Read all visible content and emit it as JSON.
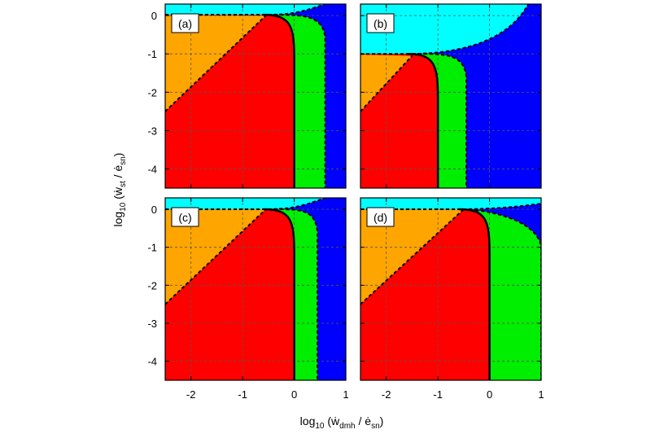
{
  "colors": {
    "red": "#ff0000",
    "orange": "#ffa500",
    "green": "#00ee00",
    "blue": "#0000ff",
    "cyan": "#00ffff",
    "grid": "#555555",
    "boundary": "#000000"
  },
  "axes": {
    "xlabel": {
      "pre": "log",
      "sub1": "10",
      "mid": " (ẇ",
      "sub2": "dmh",
      "mid2": " / ė",
      "sub3": "sn",
      "post": ")"
    },
    "ylabel": {
      "pre": "log",
      "sub1": "10",
      "mid": " (ẇ",
      "sub2": "st",
      "mid2": " / ė",
      "sub3": "sn",
      "post": ")"
    },
    "x_ticks": [
      "-2",
      "-1",
      "0",
      "1"
    ],
    "x_tick_values": [
      -2,
      -1,
      0,
      1
    ],
    "y_ticks": [
      "0",
      "-1",
      "-2",
      "-3",
      "-4"
    ],
    "y_tick_values": [
      0,
      -1,
      -2,
      -3,
      -4
    ]
  },
  "chart_data": [
    {
      "type": "heatmap",
      "panel": "(a)",
      "xlim": [
        -2.5,
        1.0
      ],
      "ylim": [
        -4.5,
        0.3
      ],
      "grid": true,
      "regions": [
        "cyan",
        "orange",
        "red",
        "green",
        "blue"
      ],
      "boundaries": {
        "red_right_x": 0.0,
        "green_right_x": 0.6,
        "orange_red_line": [
          [
            -2.5,
            -2.5
          ],
          [
            -0.55,
            0.0
          ]
        ],
        "cyan_bottom_left_y": 0.02,
        "cyan_curve_end": [
          0.6,
          0.3
        ]
      }
    },
    {
      "type": "heatmap",
      "panel": "(b)",
      "xlim": [
        -2.5,
        1.0
      ],
      "ylim": [
        -4.5,
        0.3
      ],
      "grid": true,
      "regions": [
        "cyan",
        "orange",
        "red",
        "green",
        "blue"
      ],
      "boundaries": {
        "red_right_x": -1.0,
        "green_right_x": -0.45,
        "orange_red_line": [
          [
            -2.5,
            -2.5
          ],
          [
            -1.5,
            -1.05
          ]
        ],
        "cyan_bottom_left_y": -1.0,
        "cyan_curve_end": [
          0.75,
          0.3
        ]
      }
    },
    {
      "type": "heatmap",
      "panel": "(c)",
      "xlim": [
        -2.5,
        1.0
      ],
      "ylim": [
        -4.5,
        0.3
      ],
      "grid": true,
      "regions": [
        "cyan",
        "orange",
        "red",
        "green",
        "blue"
      ],
      "boundaries": {
        "red_right_x": 0.0,
        "green_right_x": 0.45,
        "orange_red_line": [
          [
            -2.5,
            -2.5
          ],
          [
            -0.55,
            0.0
          ]
        ],
        "cyan_bottom_left_y": 0.0,
        "cyan_curve_end": [
          0.6,
          0.3
        ]
      }
    },
    {
      "type": "heatmap",
      "panel": "(d)",
      "xlim": [
        -2.5,
        1.0
      ],
      "ylim": [
        -4.5,
        0.3
      ],
      "grid": true,
      "regions": [
        "cyan",
        "orange",
        "red",
        "green",
        "blue"
      ],
      "boundaries": {
        "red_right_x": 0.0,
        "green_right_x": 1.0,
        "green_top_y": -0.4,
        "orange_red_line": [
          [
            -2.5,
            -2.5
          ],
          [
            -0.5,
            0.0
          ]
        ],
        "cyan_bottom_left_y": 0.0,
        "cyan_curve_end": [
          1.0,
          0.15
        ]
      }
    }
  ]
}
